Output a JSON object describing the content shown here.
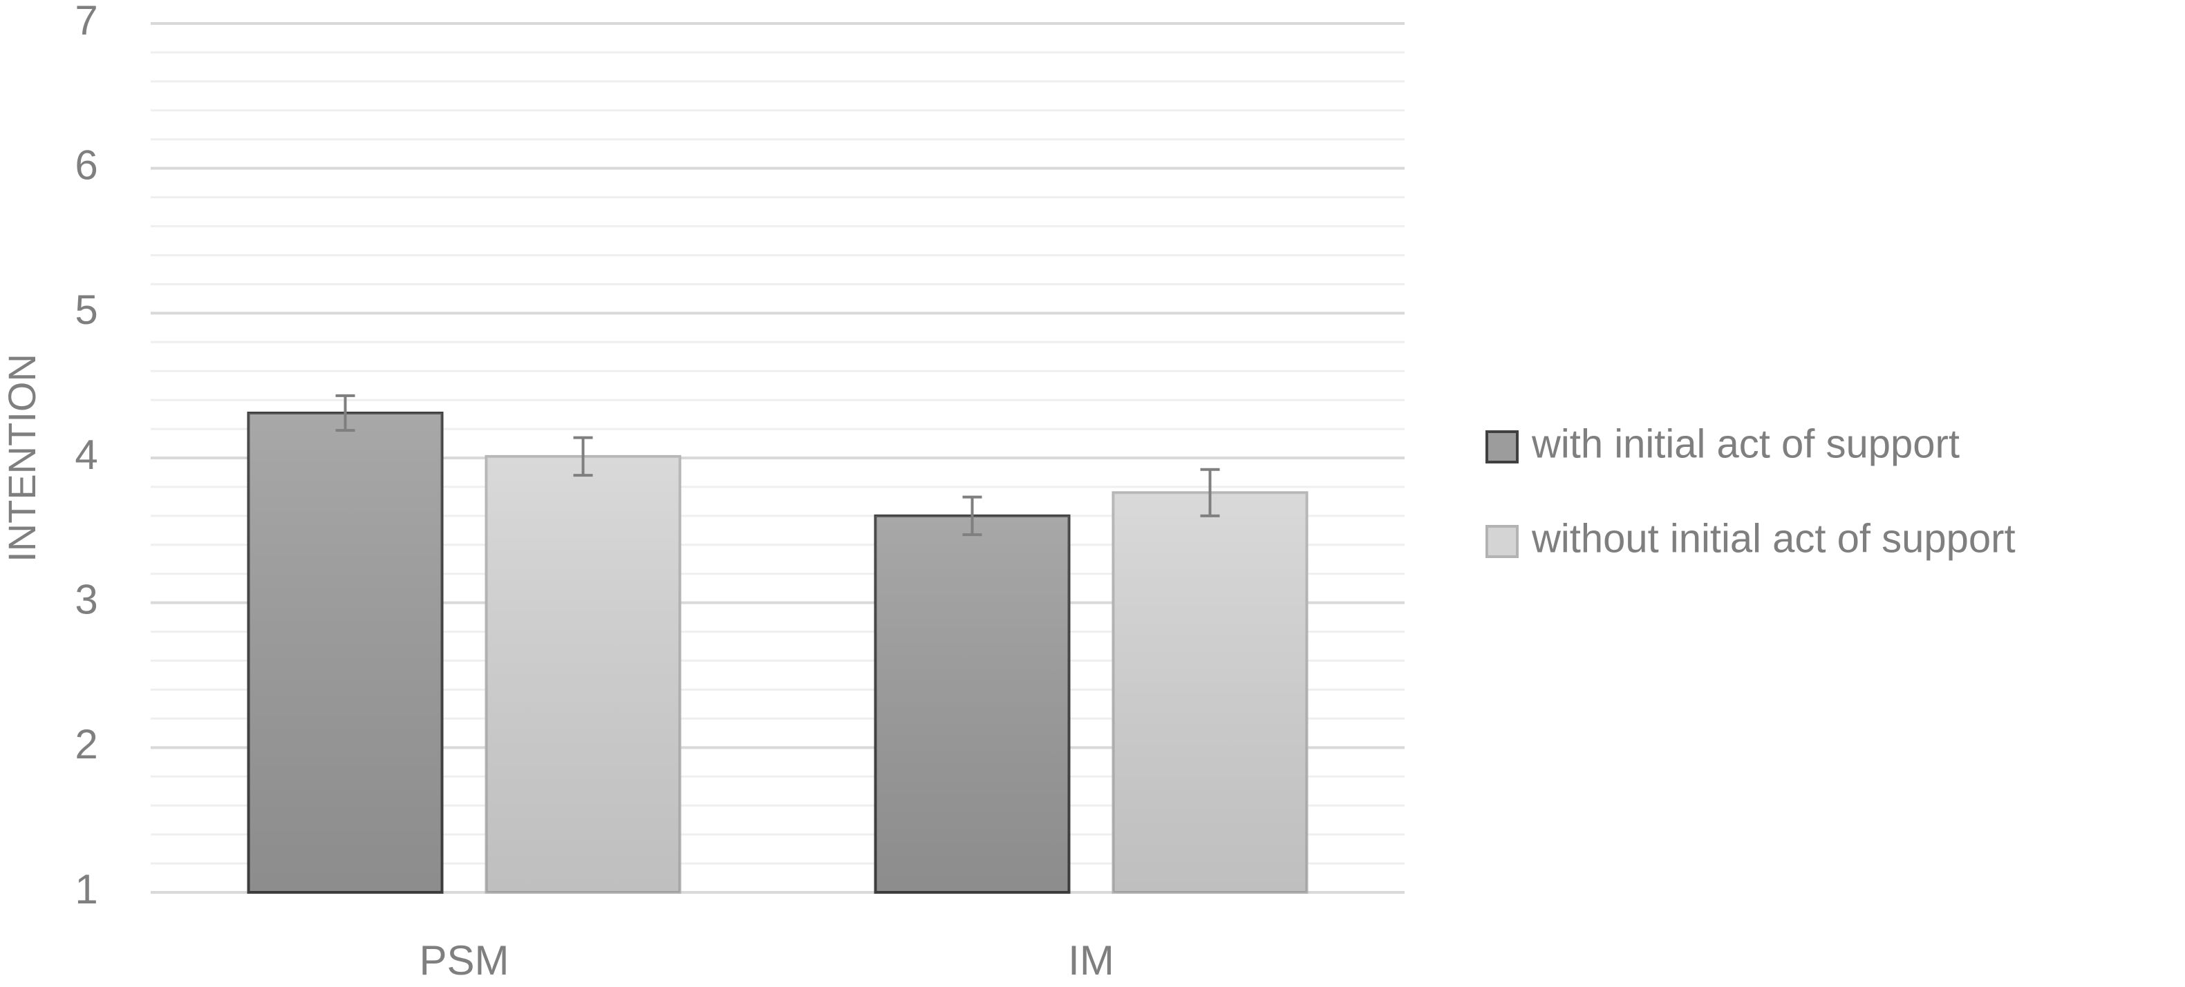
{
  "chart_data": {
    "type": "bar",
    "y_label": "INTENTION",
    "categories": [
      "PSM",
      "IM"
    ],
    "series": [
      {
        "name": "with initial act of support",
        "color": "#9c9c9c",
        "edgecolor": "#404040",
        "values": [
          4.31,
          3.6
        ],
        "errors": [
          0.12,
          0.13
        ]
      },
      {
        "name": "without initial act of support",
        "color": "#d4d4d4",
        "edgecolor": "#b3b3b3",
        "values": [
          4.01,
          3.76
        ],
        "errors": [
          0.13,
          0.16
        ]
      }
    ],
    "ylim": [
      1,
      7
    ],
    "yticks": [
      1,
      2,
      3,
      4,
      5,
      6,
      7
    ],
    "grid": true,
    "minor_grid": true,
    "legend": "right"
  }
}
